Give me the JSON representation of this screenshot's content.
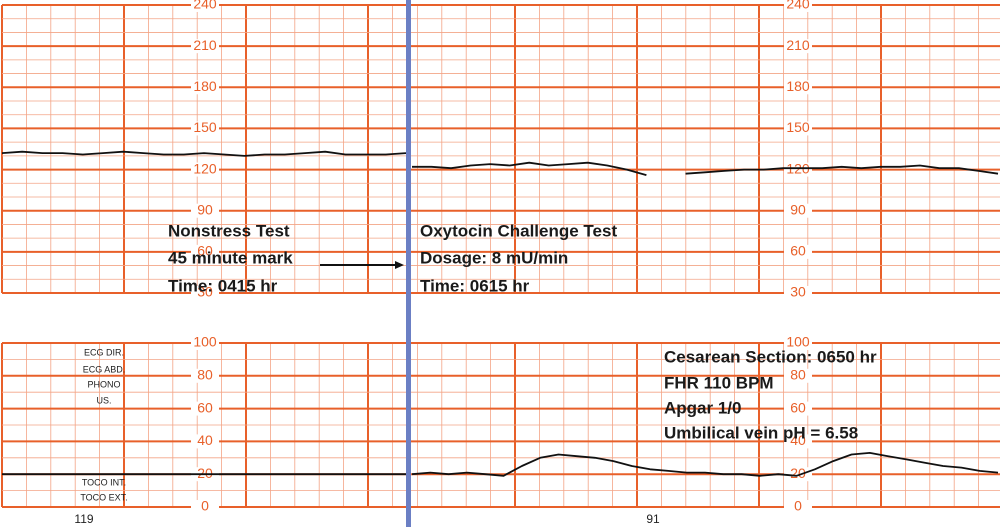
{
  "chart_data": [
    {
      "type": "line",
      "ylim": [
        30,
        240
      ],
      "yticks": [
        30,
        60,
        90,
        120,
        150,
        180,
        210,
        240
      ],
      "grid": true,
      "color": "#111111",
      "segments": [
        {
          "values": [
            132,
            133,
            132,
            132,
            131,
            132,
            133,
            132,
            131,
            131,
            132,
            131,
            130,
            131,
            131,
            132,
            133,
            131,
            131,
            131,
            132
          ]
        },
        {
          "values": [
            122,
            122,
            121,
            123,
            124,
            123,
            125,
            123,
            124,
            125,
            123,
            120,
            116,
            null,
            117,
            118,
            119,
            120,
            120,
            121,
            121,
            121,
            122,
            121,
            122,
            122,
            123,
            121,
            121,
            119,
            117
          ]
        }
      ]
    },
    {
      "type": "line",
      "ylim": [
        0,
        100
      ],
      "yticks": [
        0,
        20,
        40,
        60,
        80,
        100
      ],
      "grid": true,
      "color": "#111111",
      "segments": [
        {
          "values": [
            20,
            20,
            20,
            20,
            20,
            20,
            20,
            20,
            20,
            20,
            20,
            20,
            20,
            20,
            20,
            20,
            20,
            20,
            20,
            20,
            20
          ]
        },
        {
          "values": [
            20,
            21,
            20,
            21,
            20,
            19,
            25,
            30,
            32,
            31,
            30,
            28,
            25,
            23,
            22,
            21,
            21,
            20,
            20,
            19,
            20,
            19,
            23,
            28,
            32,
            33,
            31,
            29,
            27,
            25,
            24,
            22,
            21
          ]
        }
      ]
    }
  ],
  "annotations": {
    "nonstress": [
      "Nonstress Test",
      "45 minute mark",
      "Time: 0415 hr"
    ],
    "oxytocin": [
      "Oxytocin Challenge Test",
      "Dosage: 8 mU/min",
      "Time: 0615 hr"
    ],
    "cesarean": [
      "Cesarean Section: 0650 hr",
      "FHR 110 BPM",
      "Apgar 1/0",
      "Umbilical vein pH = 6.58"
    ]
  },
  "channel_labels": [
    "ECG DIR.",
    "ECG ABD.",
    "PHONO",
    "US.",
    "TOCO INT.",
    "TOCO EXT."
  ],
  "page_numbers": [
    "119",
    "91"
  ]
}
